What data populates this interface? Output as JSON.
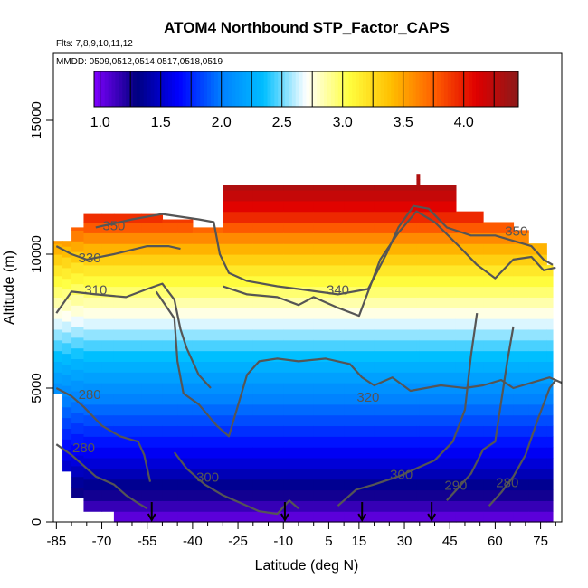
{
  "chart_data": {
    "type": "heatmap",
    "title": "ATOM4 Northbound STP_Factor_CAPS",
    "flights_note": "Flts: 7,8,9,10,11,12",
    "dates_note": "MMDD: 0509,0512,0514,0517,0518,0519",
    "xlabel": "Latitude (deg N)",
    "ylabel": "Altitude (m)",
    "xlim": [
      -86,
      82
    ],
    "ylim": [
      0,
      17500
    ],
    "x_ticks": [
      -85,
      -70,
      -55,
      -40,
      -25,
      -10,
      5,
      15,
      30,
      45,
      60,
      75
    ],
    "x_tick_labels": [
      "-85",
      "-70",
      "-55",
      "-40",
      "-25",
      "-10",
      "5",
      "15",
      "30",
      "45",
      "60",
      "75"
    ],
    "y_ticks": [
      0,
      5000,
      10000,
      15000
    ],
    "y_tick_labels": [
      "0",
      "5000",
      "10000",
      "15000"
    ],
    "colorbar": {
      "min": 0.95,
      "max": 4.45,
      "ticks": [
        1.0,
        1.5,
        2.0,
        2.5,
        3.0,
        3.5,
        4.0
      ],
      "tick_labels": [
        "1.0",
        "1.5",
        "2.0",
        "2.5",
        "3.0",
        "3.5",
        "4.0"
      ],
      "colors": [
        "#7f00ff",
        "#00007f",
        "#0000ff",
        "#007fff",
        "#00bfff",
        "#ffffff",
        "#ffff40",
        "#ffbf00",
        "#ff6000",
        "#e00000",
        "#8b1a1a"
      ]
    },
    "field": {
      "stp_at_altitude": [
        {
          "alt": 0,
          "value": 1.0
        },
        {
          "alt": 2000,
          "value": 1.5
        },
        {
          "alt": 4000,
          "value": 1.9
        },
        {
          "alt": 6000,
          "value": 2.3
        },
        {
          "alt": 8000,
          "value": 2.8
        },
        {
          "alt": 9500,
          "value": 3.2
        },
        {
          "alt": 10500,
          "value": 3.55
        },
        {
          "alt": 11500,
          "value": 4.0
        },
        {
          "alt": 12500,
          "value": 4.3
        }
      ],
      "coverage": [
        {
          "lat_start": -86,
          "lat_end": -83,
          "alt_min": 4800,
          "alt_max": 10500
        },
        {
          "lat_start": -83,
          "lat_end": -80,
          "alt_min": 1900,
          "alt_max": 10500
        },
        {
          "lat_start": -80,
          "lat_end": -76,
          "alt_min": 900,
          "alt_max": 11000
        },
        {
          "lat_start": -76,
          "lat_end": -70,
          "alt_min": 400,
          "alt_max": 11500
        },
        {
          "lat_start": -70,
          "lat_end": -66,
          "alt_min": 400,
          "alt_max": 11500
        },
        {
          "lat_start": -66,
          "lat_end": -57,
          "alt_min": 0,
          "alt_max": 11500
        },
        {
          "lat_start": -57,
          "lat_end": -50,
          "alt_min": 0,
          "alt_max": 11500
        },
        {
          "lat_start": -50,
          "lat_end": -45,
          "alt_min": 0,
          "alt_max": 11300
        },
        {
          "lat_start": -45,
          "lat_end": -40,
          "alt_min": 0,
          "alt_max": 11300
        },
        {
          "lat_start": -40,
          "lat_end": -30,
          "alt_min": 0,
          "alt_max": 11000
        },
        {
          "lat_start": -30,
          "lat_end": -20,
          "alt_min": 0,
          "alt_max": 12600
        },
        {
          "lat_start": -20,
          "lat_end": -10,
          "alt_min": 0,
          "alt_max": 12600
        },
        {
          "lat_start": -10,
          "lat_end": 0,
          "alt_min": 0,
          "alt_max": 12600
        },
        {
          "lat_start": 0,
          "lat_end": 10,
          "alt_min": 0,
          "alt_max": 12600
        },
        {
          "lat_start": 10,
          "lat_end": 20,
          "alt_min": 0,
          "alt_max": 12600
        },
        {
          "lat_start": 20,
          "lat_end": 34,
          "alt_min": 0,
          "alt_max": 12600
        },
        {
          "lat_start": 34,
          "lat_end": 35,
          "alt_min": 0,
          "alt_max": 13000
        },
        {
          "lat_start": 35,
          "lat_end": 47,
          "alt_min": 0,
          "alt_max": 12600
        },
        {
          "lat_start": 47,
          "lat_end": 56,
          "alt_min": 0,
          "alt_max": 11600
        },
        {
          "lat_start": 56,
          "lat_end": 66,
          "alt_min": 0,
          "alt_max": 11200
        },
        {
          "lat_start": 66,
          "lat_end": 71,
          "alt_min": 0,
          "alt_max": 10900
        },
        {
          "lat_start": 71,
          "lat_end": 77,
          "alt_min": 0,
          "alt_max": 10400
        },
        {
          "lat_start": 77,
          "lat_end": 79,
          "alt_min": 0,
          "alt_max": 9600
        }
      ]
    },
    "contours": [
      {
        "label": "350",
        "points": [
          [
            -72,
            11000
          ],
          [
            -60,
            11300
          ],
          [
            -50,
            11500
          ],
          [
            -38,
            11300
          ],
          [
            -33,
            11200
          ],
          [
            -31,
            10000
          ],
          [
            -28,
            9300
          ],
          [
            -22,
            9000
          ],
          [
            -12,
            8800
          ],
          [
            -5,
            8700
          ],
          [
            8,
            8500
          ],
          [
            18,
            8700
          ],
          [
            24,
            10000
          ],
          [
            28,
            11000
          ],
          [
            33,
            11800
          ],
          [
            38,
            11700
          ],
          [
            44,
            11000
          ],
          [
            52,
            10700
          ],
          [
            60,
            10700
          ],
          [
            66,
            10500
          ],
          [
            72,
            10300
          ],
          [
            76,
            9800
          ],
          [
            79,
            9600
          ]
        ]
      },
      {
        "label": "330",
        "points": [
          [
            -85,
            10300
          ],
          [
            -80,
            10000
          ],
          [
            -75,
            9800
          ],
          [
            -66,
            10000
          ],
          [
            -55,
            10300
          ],
          [
            -48,
            10300
          ],
          [
            -44,
            10200
          ]
        ]
      },
      {
        "label": "340",
        "points": [
          [
            -30,
            8800
          ],
          [
            -22,
            8500
          ],
          [
            -12,
            8400
          ],
          [
            -5,
            8100
          ],
          [
            0,
            8400
          ],
          [
            8,
            8000
          ],
          [
            15,
            7700
          ],
          [
            22,
            9800
          ],
          [
            28,
            10800
          ],
          [
            34,
            11600
          ],
          [
            40,
            11200
          ],
          [
            48,
            10300
          ],
          [
            54,
            9600
          ],
          [
            60,
            9100
          ],
          [
            66,
            9800
          ],
          [
            72,
            9900
          ],
          [
            76,
            9400
          ],
          [
            80,
            9500
          ]
        ]
      },
      {
        "label": "310",
        "points": [
          [
            -85,
            7800
          ],
          [
            -80,
            8600
          ],
          [
            -72,
            8500
          ],
          [
            -62,
            8400
          ],
          [
            -55,
            8700
          ],
          [
            -50,
            8900
          ],
          [
            -46,
            8300
          ],
          [
            -44,
            7200
          ],
          [
            -42,
            6500
          ],
          [
            -38,
            5500
          ],
          [
            -34,
            5000
          ]
        ]
      },
      {
        "label": "320",
        "points": [
          [
            -52,
            8600
          ],
          [
            -46,
            7600
          ],
          [
            -45,
            6000
          ],
          [
            -43,
            4800
          ],
          [
            -38,
            4400
          ],
          [
            -32,
            3600
          ],
          [
            -28,
            3200
          ],
          [
            -22,
            5500
          ],
          [
            -18,
            6000
          ],
          [
            -12,
            6100
          ],
          [
            -5,
            6000
          ],
          [
            4,
            6100
          ],
          [
            12,
            5900
          ],
          [
            16,
            5400
          ],
          [
            20,
            5100
          ],
          [
            26,
            5400
          ],
          [
            32,
            4900
          ],
          [
            42,
            5100
          ],
          [
            50,
            5000
          ],
          [
            56,
            5100
          ],
          [
            62,
            5300
          ],
          [
            66,
            5000
          ],
          [
            72,
            5200
          ],
          [
            78,
            5400
          ],
          [
            82,
            5200
          ]
        ]
      },
      {
        "label": "280",
        "points": [
          [
            -85,
            5000
          ],
          [
            -80,
            4700
          ],
          [
            -76,
            4300
          ],
          [
            -70,
            3600
          ],
          [
            -64,
            3200
          ],
          [
            -58,
            3000
          ],
          [
            -56,
            2500
          ],
          [
            -54,
            1500
          ]
        ]
      },
      {
        "label": "280",
        "points": [
          [
            -85,
            2900
          ],
          [
            -80,
            2500
          ],
          [
            -76,
            2100
          ],
          [
            -72,
            1700
          ],
          [
            -66,
            1400
          ],
          [
            -62,
            1000
          ],
          [
            -58,
            700
          ],
          [
            -55,
            500
          ]
        ]
      },
      {
        "label": "300",
        "points": [
          [
            -46,
            2600
          ],
          [
            -42,
            2000
          ],
          [
            -36,
            1400
          ],
          [
            -30,
            1000
          ],
          [
            -24,
            700
          ],
          [
            -18,
            400
          ],
          [
            -12,
            300
          ],
          [
            -8,
            800
          ],
          [
            -5,
            500
          ]
        ]
      },
      {
        "label": "300",
        "points": [
          [
            8,
            600
          ],
          [
            14,
            1200
          ],
          [
            20,
            1400
          ],
          [
            28,
            1700
          ],
          [
            34,
            2000
          ],
          [
            40,
            2300
          ],
          [
            46,
            3000
          ],
          [
            50,
            4200
          ],
          [
            52,
            6200
          ],
          [
            54,
            7800
          ]
        ]
      },
      {
        "label": "290",
        "points": [
          [
            44,
            800
          ],
          [
            48,
            1300
          ],
          [
            52,
            1800
          ],
          [
            56,
            2700
          ],
          [
            60,
            3000
          ],
          [
            62,
            4500
          ],
          [
            64,
            6000
          ],
          [
            66,
            7300
          ]
        ]
      },
      {
        "label": "280",
        "points": [
          [
            58,
            600
          ],
          [
            62,
            1100
          ],
          [
            66,
            1700
          ],
          [
            70,
            2500
          ],
          [
            74,
            3800
          ],
          [
            78,
            5000
          ],
          [
            80,
            5300
          ]
        ]
      }
    ],
    "contour_labels": [
      {
        "text": "350",
        "x": -66,
        "y": 10900
      },
      {
        "text": "350",
        "x": 67,
        "y": 10700
      },
      {
        "text": "330",
        "x": -74,
        "y": 9700
      },
      {
        "text": "340",
        "x": 8,
        "y": 8500
      },
      {
        "text": "310",
        "x": -72,
        "y": 8500
      },
      {
        "text": "320",
        "x": 18,
        "y": 4500
      },
      {
        "text": "280",
        "x": -74,
        "y": 4600
      },
      {
        "text": "280",
        "x": -76,
        "y": 2600
      },
      {
        "text": "300",
        "x": -35,
        "y": 1500
      },
      {
        "text": "300",
        "x": 29,
        "y": 1600
      },
      {
        "text": "290",
        "x": 47,
        "y": 1200
      },
      {
        "text": "280",
        "x": 64,
        "y": 1300
      }
    ],
    "markers": [
      {
        "type": "arrow-down",
        "lat": -53.5,
        "alt": 0
      },
      {
        "type": "arrow-down",
        "lat": -9.5,
        "alt": 0
      },
      {
        "type": "arrow-down",
        "lat": 16,
        "alt": 0
      },
      {
        "type": "arrow-down",
        "lat": 39,
        "alt": 0
      }
    ]
  }
}
